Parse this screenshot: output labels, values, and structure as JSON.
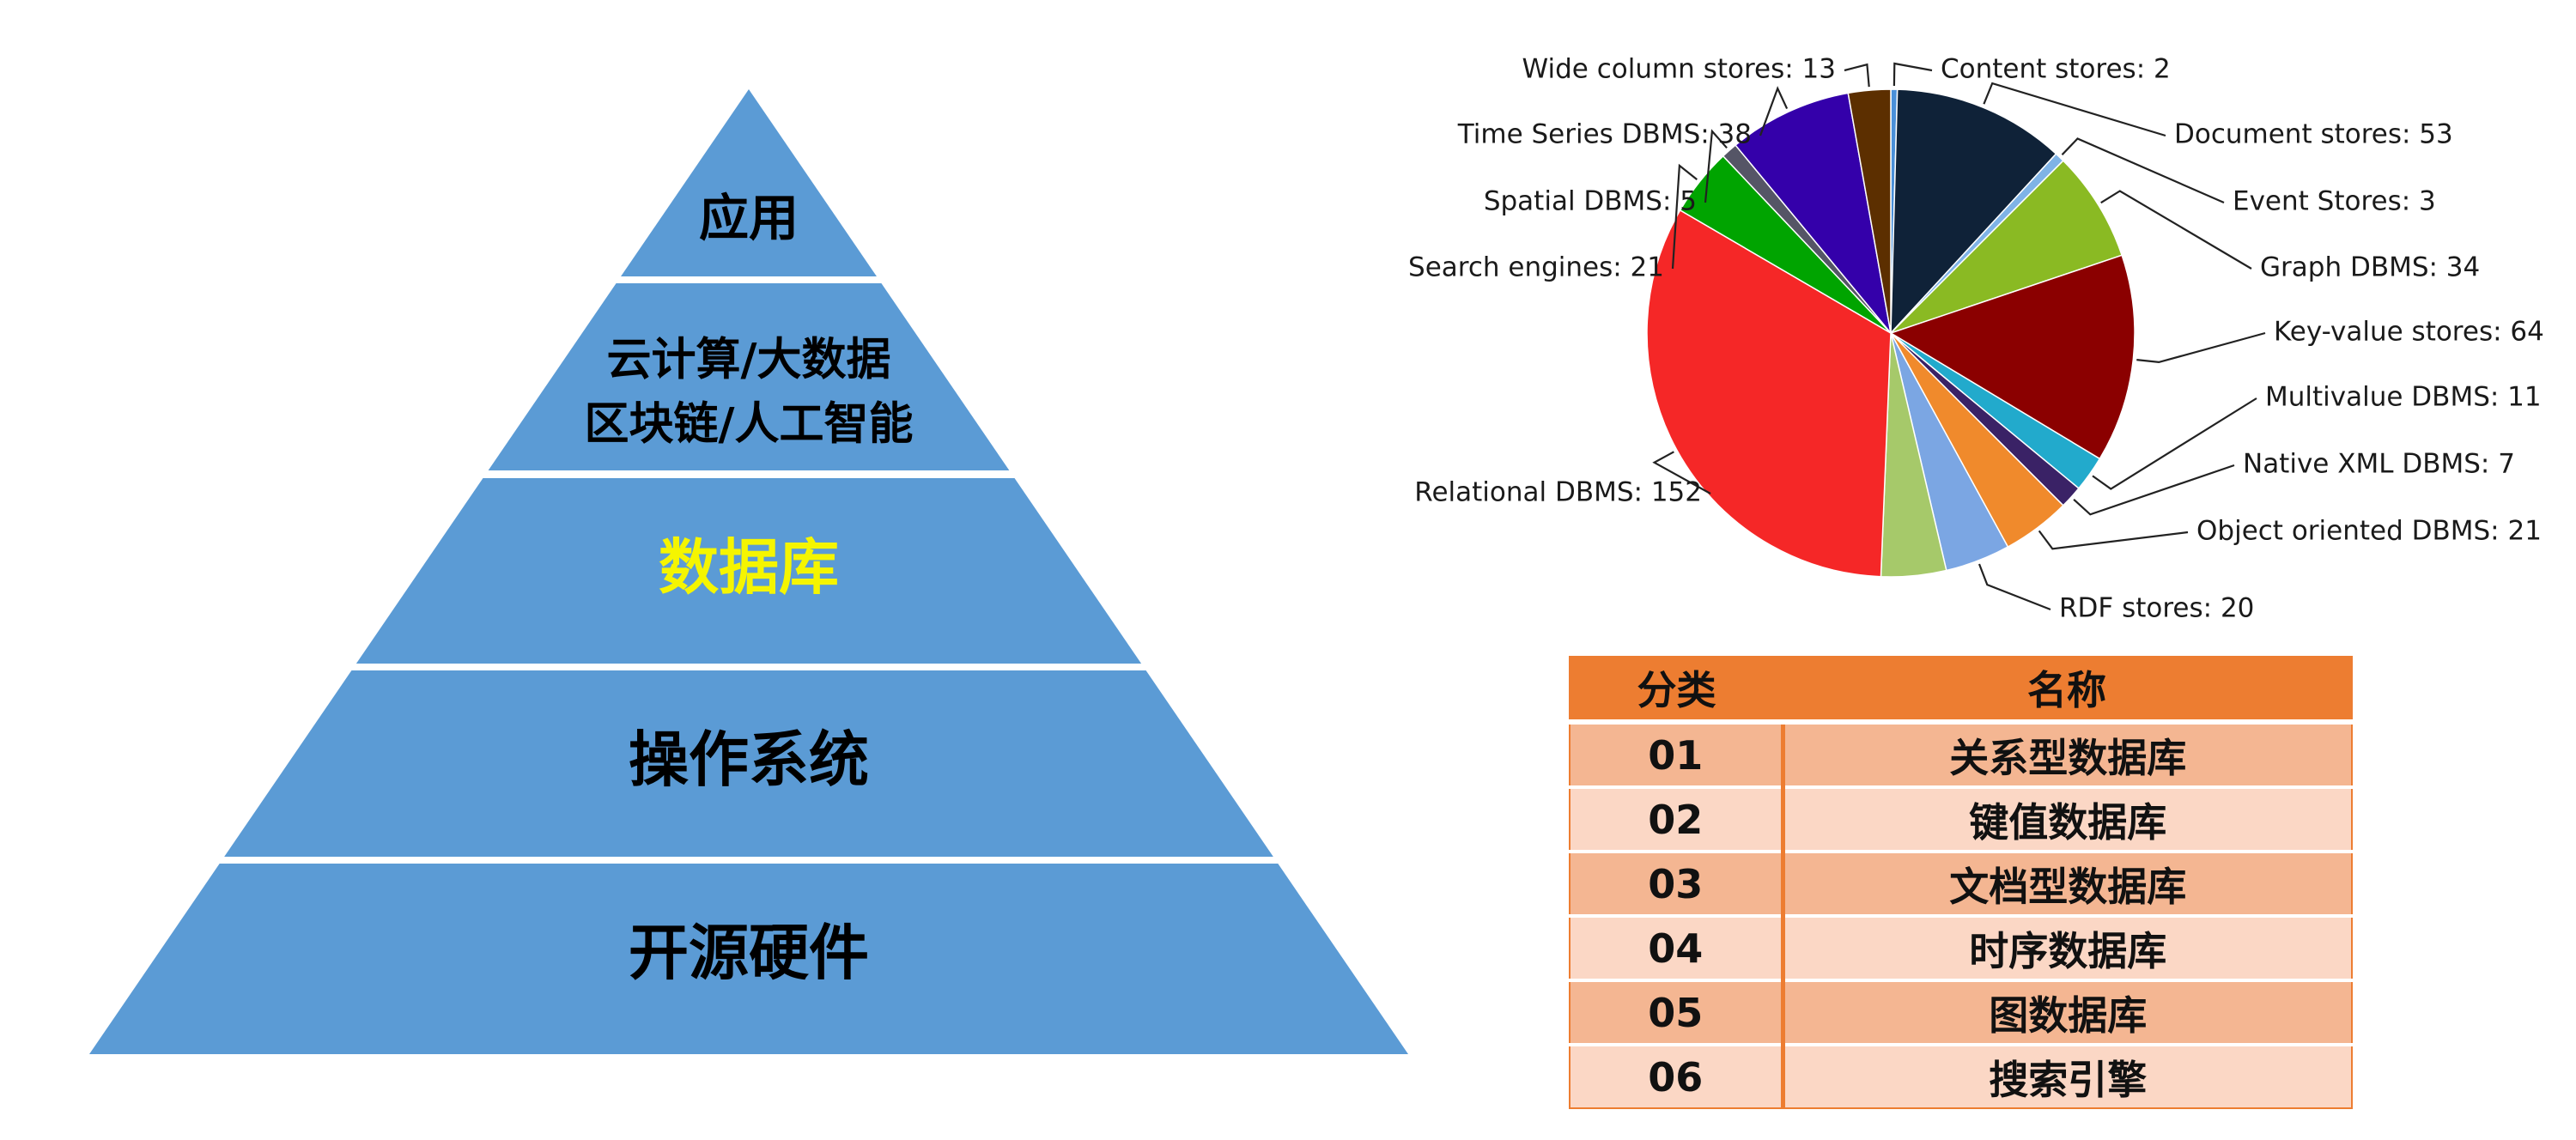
{
  "pyramid": {
    "tiers": [
      {
        "lines": [
          "应用"
        ],
        "color": "#000000"
      },
      {
        "lines": [
          "云计算/大数据",
          "区块链/人工智能"
        ],
        "color": "#000000"
      },
      {
        "lines": [
          "数据库"
        ],
        "color": "#f5f500"
      },
      {
        "lines": [
          "操作系统"
        ],
        "color": "#000000"
      },
      {
        "lines": [
          "开源硬件"
        ],
        "color": "#000000"
      }
    ],
    "fill_color": "#5b9bd5"
  },
  "chart_data": {
    "type": "pie",
    "title": "",
    "slices": [
      {
        "label": "Content stores: 2",
        "name": "Content stores",
        "value": 2,
        "color": "#4a90d9"
      },
      {
        "label": "Document stores: 53",
        "name": "Document stores",
        "value": 53,
        "color": "#0f2238"
      },
      {
        "label": "Event Stores: 3",
        "name": "Event Stores",
        "value": 3,
        "color": "#7fb3e6"
      },
      {
        "label": "Graph DBMS: 34",
        "name": "Graph DBMS",
        "value": 34,
        "color": "#8aba23"
      },
      {
        "label": "Key-value stores: 64",
        "name": "Key-value stores",
        "value": 64,
        "color": "#8b0000"
      },
      {
        "label": "Multivalue DBMS: 11",
        "name": "Multivalue DBMS",
        "value": 11,
        "color": "#22aacc"
      },
      {
        "label": "Native XML DBMS: 7",
        "name": "Native XML DBMS",
        "value": 7,
        "color": "#3a2266"
      },
      {
        "label": "Object oriented DBMS: 21",
        "name": "Object oriented DBMS",
        "value": 21,
        "color": "#f08a2c"
      },
      {
        "label": "RDF stores: 20",
        "name": "RDF stores",
        "value": 20,
        "color": "#7ba6e3"
      },
      {
        "label": "",
        "name": "",
        "value": 20,
        "color": "#a6c96a"
      },
      {
        "label": "Relational DBMS: 152",
        "name": "Relational DBMS",
        "value": 152,
        "color": "#f52727"
      },
      {
        "label": "Search engines: 21",
        "name": "Search engines",
        "value": 21,
        "color": "#00a400"
      },
      {
        "label": "Spatial DBMS: 5",
        "name": "Spatial DBMS",
        "value": 5,
        "color": "#555566"
      },
      {
        "label": "Time Series DBMS: 38",
        "name": "Time Series DBMS",
        "value": 38,
        "color": "#3400aa"
      },
      {
        "label": "Wide column stores: 13",
        "name": "Wide column stores",
        "value": 13,
        "color": "#5c2f00"
      }
    ]
  },
  "table": {
    "headers": [
      "分类",
      "名称"
    ],
    "rows": [
      [
        "01",
        "关系型数据库"
      ],
      [
        "02",
        "键值数据库"
      ],
      [
        "03",
        "文档型数据库"
      ],
      [
        "04",
        "时序数据库"
      ],
      [
        "05",
        "图数据库"
      ],
      [
        "06",
        "搜索引擎"
      ]
    ],
    "header_color": "#ed7d31"
  }
}
